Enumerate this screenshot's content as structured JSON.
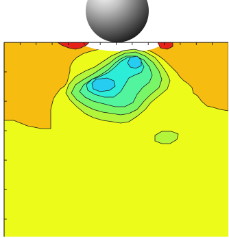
{
  "chart_data": {
    "type": "heatmap",
    "subtype": "filled-contour",
    "title": "",
    "xlabel": "",
    "ylabel": "",
    "x_tick_labels": [],
    "y_tick_labels": [],
    "x_tick_count": 13,
    "y_tick_count": 6,
    "grid": false,
    "legend": "none",
    "indenter": "sphere",
    "levels": [
      {
        "name": "level-1",
        "color": "#e6231a"
      },
      {
        "name": "level-2",
        "color": "#f6bc10"
      },
      {
        "name": "level-3",
        "color": "#ecfb1a"
      },
      {
        "name": "level-4",
        "color": "#b3f53b"
      },
      {
        "name": "level-5",
        "color": "#79f568"
      },
      {
        "name": "level-6",
        "color": "#52f59e"
      },
      {
        "name": "level-7",
        "color": "#2ceed8"
      },
      {
        "name": "level-8",
        "color": "#27cdf0"
      }
    ],
    "contour_line_color": "#1a1a1a",
    "frame_color": "#000000"
  }
}
